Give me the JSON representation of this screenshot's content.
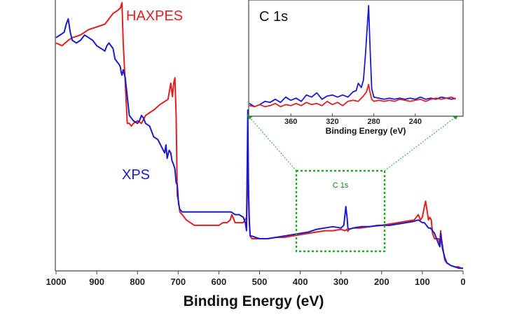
{
  "chart_data": [
    {
      "type": "line",
      "title": "",
      "xlabel": "Binding Energy (eV)",
      "ylabel": "",
      "xlim": [
        1000,
        0
      ],
      "x_reversed": true,
      "ylim": [
        0,
        100
      ],
      "y_ticks_shown": false,
      "grid": false,
      "xticks": [
        "1000",
        "900",
        "800",
        "700",
        "600",
        "500",
        "400",
        "300",
        "200",
        "100",
        "0"
      ],
      "xtick_values": [
        1000,
        900,
        800,
        700,
        600,
        500,
        400,
        300,
        200,
        100,
        0
      ],
      "series": [
        {
          "name": "HAXPES",
          "color": "#e02020",
          "x": [
            1000,
            985,
            970,
            960,
            940,
            920,
            900,
            880,
            870,
            860,
            850,
            842,
            838,
            835,
            830,
            825,
            820,
            815,
            810,
            800,
            790,
            780,
            770,
            760,
            745,
            735,
            725,
            718,
            714,
            711,
            708,
            705,
            702,
            699,
            696,
            690,
            680,
            660,
            640,
            620,
            600,
            590,
            580,
            572,
            568,
            560,
            550,
            540,
            532,
            528,
            526,
            523,
            519,
            510,
            500,
            480,
            460,
            440,
            420,
            400,
            380,
            360,
            340,
            320,
            300,
            290,
            285,
            283,
            280,
            270,
            250,
            230,
            210,
            200,
            180,
            160,
            140,
            120,
            110,
            105,
            100,
            95,
            92,
            88,
            85,
            82,
            78,
            75,
            70,
            60,
            57,
            55,
            53,
            50,
            45,
            40,
            30,
            20,
            10,
            5,
            0
          ],
          "y": [
            85,
            84,
            86,
            87,
            88,
            90,
            91,
            92,
            94,
            96,
            97,
            98,
            100,
            85,
            70,
            55,
            55,
            54,
            55,
            56,
            55,
            58,
            59,
            60,
            62,
            63,
            64,
            70,
            65,
            70,
            72,
            58,
            28,
            26,
            22,
            21,
            19,
            17,
            17,
            17,
            17,
            18,
            18,
            19,
            21,
            18,
            18,
            18,
            20,
            38,
            21,
            13,
            12,
            12,
            12,
            12,
            12.5,
            12.5,
            13,
            13.5,
            14,
            14.5,
            15,
            15,
            15.5,
            15,
            15.5,
            14.8,
            15.5,
            16,
            16,
            16.5,
            17,
            17,
            17.5,
            18,
            18.5,
            19,
            21,
            19,
            20,
            24,
            26,
            22,
            19,
            20,
            19,
            14,
            12,
            12,
            10,
            15,
            12,
            9,
            4,
            3,
            2,
            1.5,
            1.5,
            1,
            1
          ]
        },
        {
          "name": "XPS",
          "color": "#1a1ad0",
          "x": [
            1000,
            990,
            980,
            975,
            970,
            965,
            960,
            950,
            940,
            930,
            920,
            910,
            900,
            890,
            880,
            875,
            870,
            860,
            855,
            850,
            845,
            842,
            840,
            838,
            835,
            830,
            825,
            820,
            815,
            810,
            800,
            795,
            790,
            785,
            780,
            770,
            760,
            750,
            740,
            733,
            730,
            727,
            722,
            718,
            715,
            712,
            708,
            705,
            702,
            699,
            696,
            690,
            680,
            660,
            640,
            620,
            600,
            580,
            570,
            560,
            550,
            540,
            535,
            532,
            529,
            527,
            525,
            523,
            519,
            510,
            500,
            480,
            460,
            440,
            420,
            400,
            380,
            360,
            340,
            320,
            300,
            293,
            288,
            285,
            283,
            280,
            270,
            250,
            230,
            200,
            180,
            160,
            140,
            120,
            110,
            100,
            95,
            90,
            85,
            80,
            75,
            70,
            60,
            57,
            55,
            53,
            50,
            45,
            40,
            30,
            20,
            10,
            5,
            0
          ],
          "y": [
            87,
            88,
            89,
            92,
            94,
            89,
            86,
            85,
            86,
            88,
            87,
            86,
            84,
            83,
            82,
            84,
            85,
            83,
            79,
            78,
            77,
            76,
            74,
            73,
            75,
            72,
            65,
            58,
            57,
            56,
            55,
            56,
            58,
            57,
            55,
            54,
            50,
            49,
            46,
            44,
            47,
            42,
            45,
            44,
            41,
            40,
            38,
            33,
            32,
            25,
            23,
            22,
            22,
            22,
            22,
            22,
            22,
            22,
            22,
            21,
            21,
            20,
            18,
            15,
            60,
            30,
            18,
            13,
            13,
            12.5,
            12,
            12,
            12.5,
            13,
            13.5,
            14,
            14.5,
            15.5,
            16,
            16.5,
            16,
            17,
            24,
            20,
            16,
            15.5,
            16,
            16.5,
            16.5,
            17,
            17,
            17.5,
            18,
            18.5,
            19,
            18,
            18,
            17,
            16,
            16,
            15,
            14,
            10,
            9,
            14,
            11,
            8,
            5,
            3,
            2,
            1.5,
            1,
            1,
            1
          ]
        }
      ],
      "annotations": {
        "haxpes_label": "HAXPES",
        "xps_label": "XPS",
        "zoom_box_label": "C 1s",
        "zoom_box_xrange": [
          400,
          190
        ]
      }
    },
    {
      "type": "line",
      "role": "inset",
      "title": "C 1s",
      "xlabel": "Binding Energy (eV)",
      "ylabel": "",
      "xlim": [
        400,
        200
      ],
      "x_reversed": true,
      "ylim": [
        0,
        100
      ],
      "y_ticks_shown": false,
      "grid": false,
      "xticks": [
        "360",
        "320",
        "280",
        "240"
      ],
      "xtick_values": [
        360,
        320,
        280,
        240
      ],
      "series": [
        {
          "name": "XPS",
          "color": "#1a1ad0",
          "x": [
            400,
            395,
            390,
            385,
            380,
            375,
            370,
            365,
            360,
            355,
            350,
            345,
            340,
            335,
            330,
            325,
            320,
            315,
            310,
            305,
            300,
            297,
            295,
            292,
            290,
            288,
            286,
            285,
            284,
            282,
            280,
            275,
            270,
            265,
            260,
            255,
            250,
            245,
            240,
            235,
            230,
            225,
            220,
            215,
            210,
            205,
            201
          ],
          "y": [
            8,
            5,
            7,
            10,
            9,
            12,
            9,
            14,
            11,
            13,
            10,
            16,
            14,
            18,
            12,
            15,
            16,
            14,
            16,
            14,
            19,
            20,
            27,
            23,
            30,
            55,
            85,
            100,
            70,
            22,
            14,
            13,
            12,
            13,
            12,
            13,
            12,
            13,
            12,
            14,
            12,
            13,
            12,
            14,
            13,
            12,
            13
          ]
        },
        {
          "name": "HAXPES",
          "color": "#e02020",
          "x": [
            400,
            395,
            390,
            385,
            380,
            375,
            370,
            365,
            360,
            355,
            350,
            345,
            340,
            335,
            330,
            325,
            320,
            315,
            310,
            305,
            300,
            295,
            290,
            287,
            285,
            284,
            282,
            280,
            275,
            270,
            265,
            260,
            255,
            250,
            245,
            240,
            235,
            230,
            225,
            220,
            215,
            210,
            205,
            201
          ],
          "y": [
            6,
            5,
            7,
            5,
            6,
            8,
            5,
            7,
            6,
            8,
            6,
            9,
            7,
            8,
            6,
            10,
            7,
            9,
            6,
            10,
            11,
            10,
            15,
            19,
            26,
            20,
            12,
            10,
            11,
            10,
            11,
            10,
            12,
            11,
            10,
            11,
            12,
            10,
            12,
            13,
            12,
            13,
            14,
            12
          ]
        }
      ]
    }
  ]
}
